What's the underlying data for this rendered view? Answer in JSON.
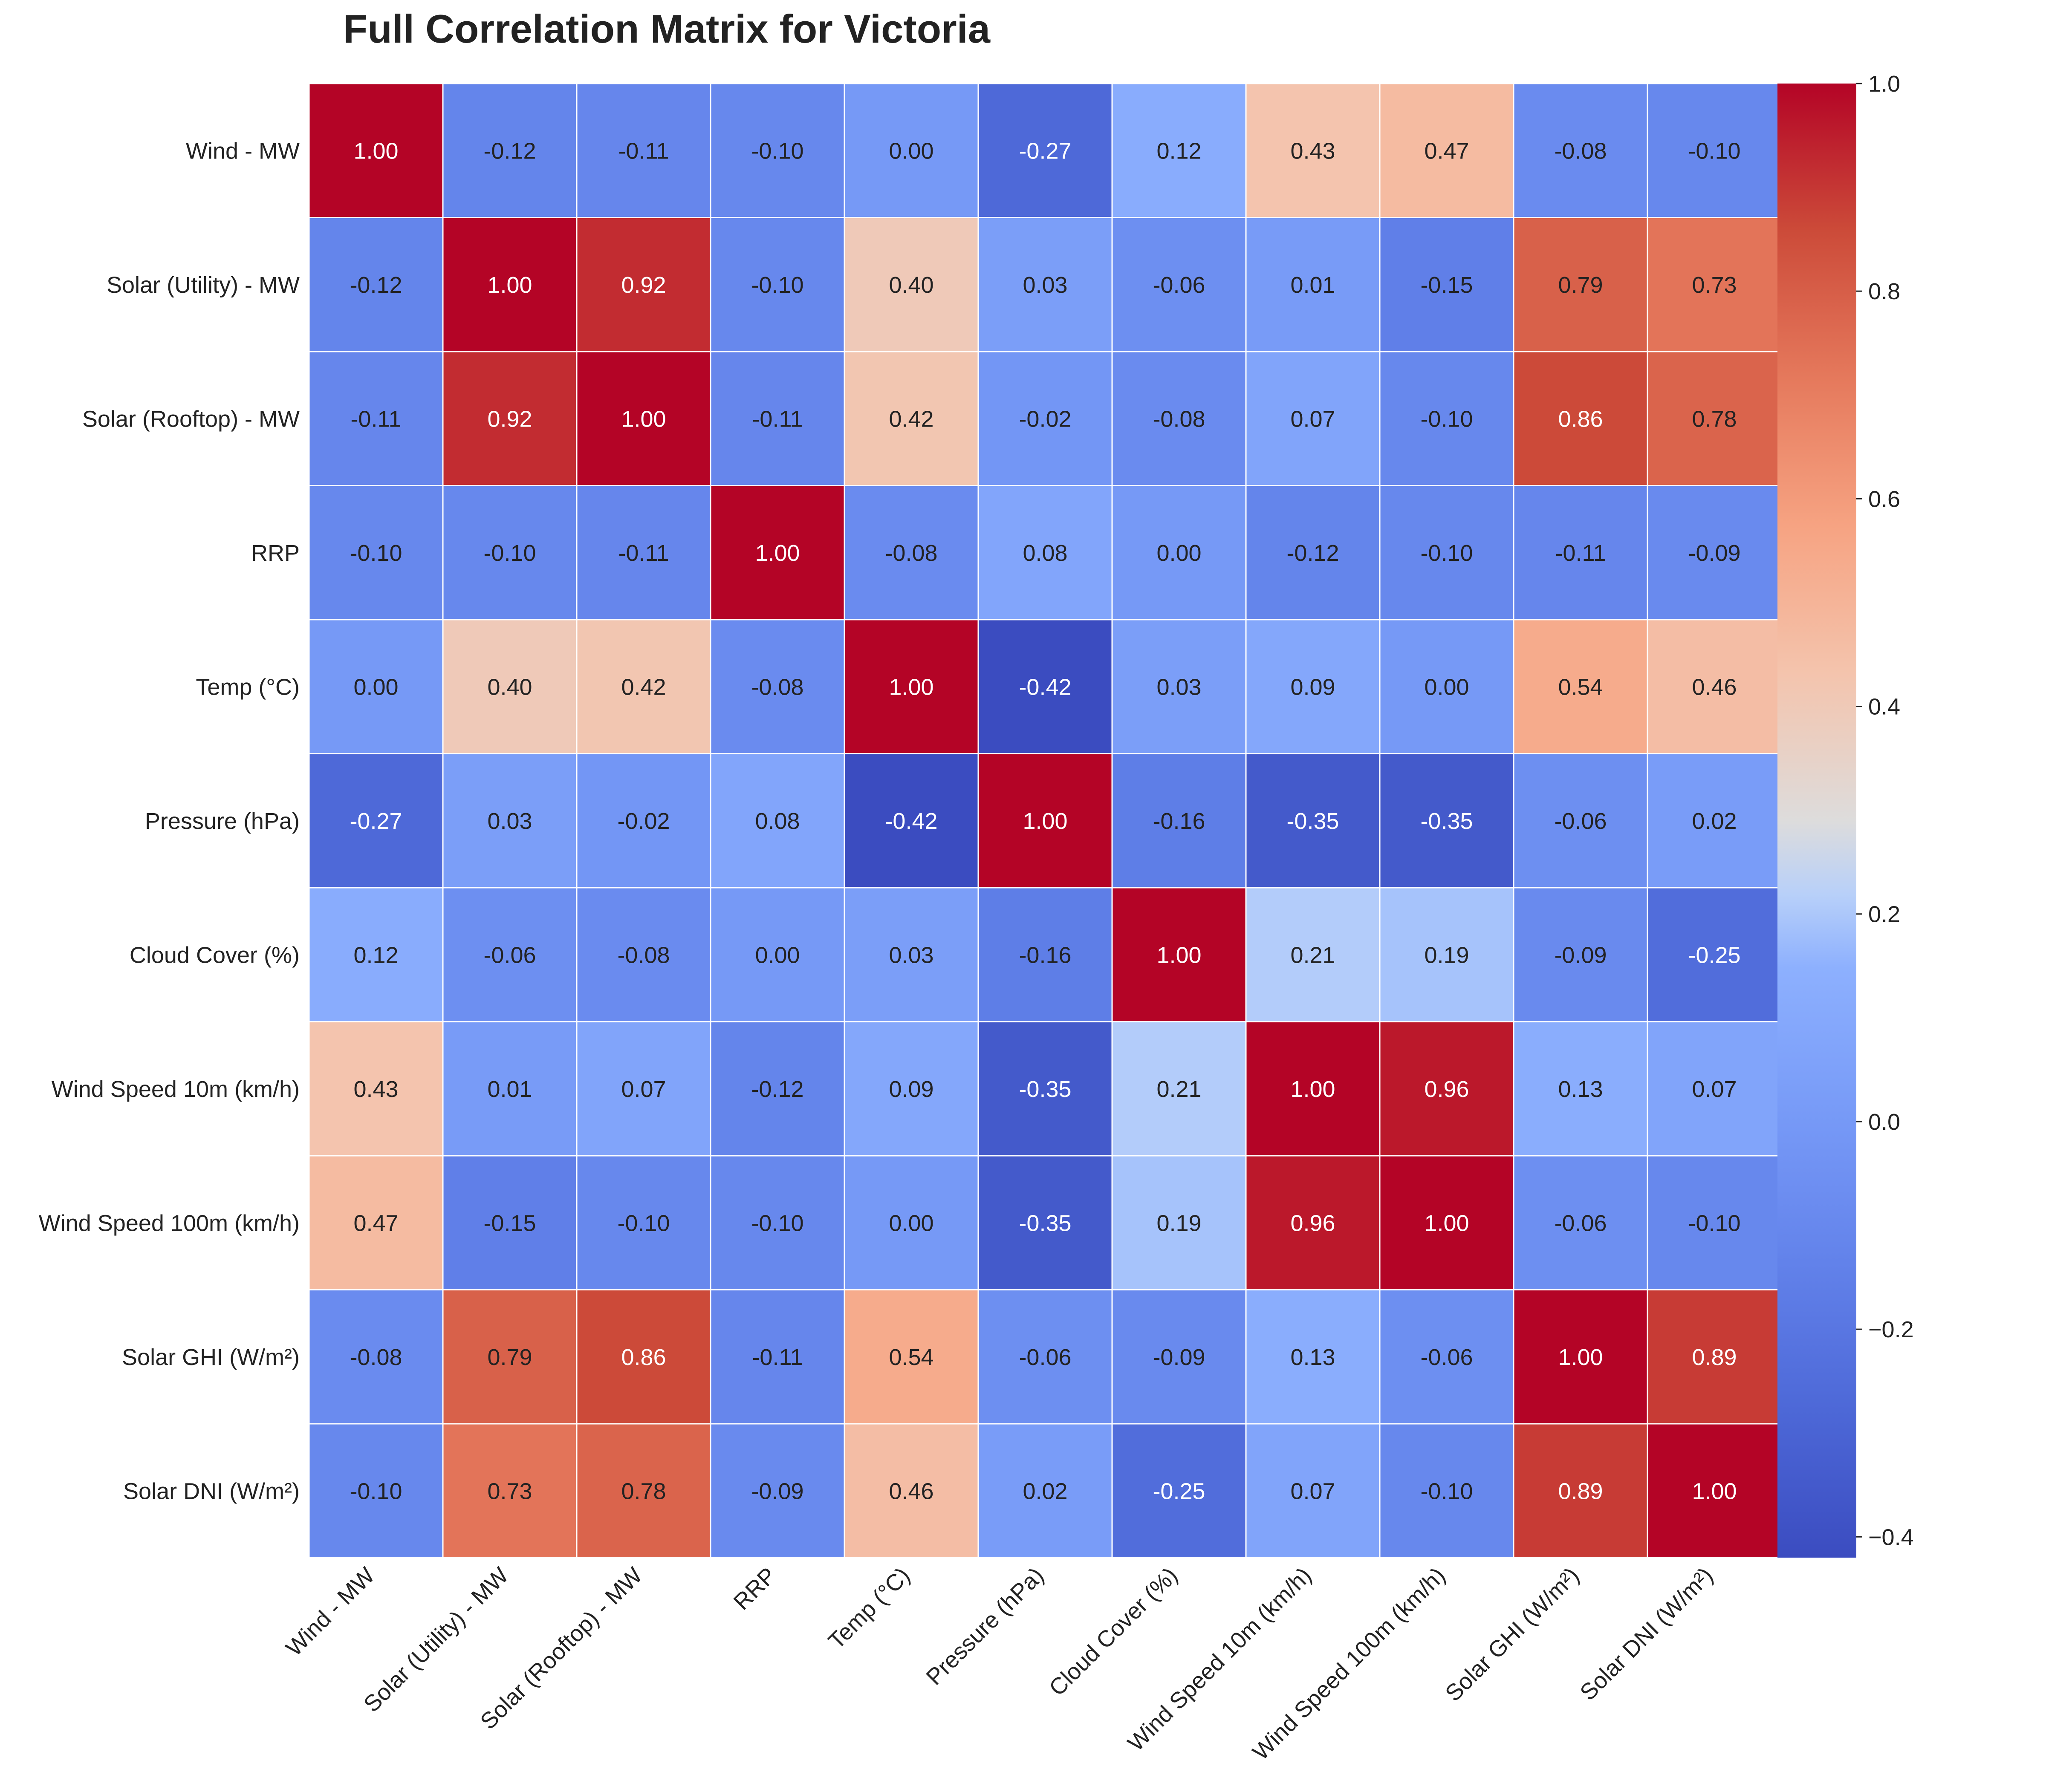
{
  "chart_data": {
    "type": "heatmap",
    "title": "Full Correlation Matrix for Victoria",
    "labels": [
      "Wind -  MW",
      "Solar (Utility) -  MW",
      "Solar (Rooftop) -  MW",
      "RRP",
      "Temp (°C)",
      "Pressure (hPa)",
      "Cloud Cover (%)",
      "Wind Speed 10m (km/h)",
      "Wind Speed 100m (km/h)",
      "Solar GHI (W/m²)",
      "Solar DNI (W/m²)"
    ],
    "values": [
      [
        1.0,
        -0.12,
        -0.11,
        -0.1,
        0.0,
        -0.27,
        0.12,
        0.43,
        0.47,
        -0.08,
        -0.1
      ],
      [
        -0.12,
        1.0,
        0.92,
        -0.1,
        0.4,
        0.03,
        -0.06,
        0.01,
        -0.15,
        0.79,
        0.73
      ],
      [
        -0.11,
        0.92,
        1.0,
        -0.11,
        0.42,
        -0.02,
        -0.08,
        0.07,
        -0.1,
        0.86,
        0.78
      ],
      [
        -0.1,
        -0.1,
        -0.11,
        1.0,
        -0.08,
        0.08,
        0.0,
        -0.12,
        -0.1,
        -0.11,
        -0.09
      ],
      [
        0.0,
        0.4,
        0.42,
        -0.08,
        1.0,
        -0.42,
        0.03,
        0.09,
        0.0,
        0.54,
        0.46
      ],
      [
        -0.27,
        0.03,
        -0.02,
        0.08,
        -0.42,
        1.0,
        -0.16,
        -0.35,
        -0.35,
        -0.06,
        0.02
      ],
      [
        0.12,
        -0.06,
        -0.08,
        0.0,
        0.03,
        -0.16,
        1.0,
        0.21,
        0.19,
        -0.09,
        -0.25
      ],
      [
        0.43,
        0.01,
        0.07,
        -0.12,
        0.09,
        -0.35,
        0.21,
        1.0,
        0.96,
        0.13,
        0.07
      ],
      [
        0.47,
        -0.15,
        -0.1,
        -0.1,
        0.0,
        -0.35,
        0.19,
        0.96,
        1.0,
        -0.06,
        -0.1
      ],
      [
        -0.08,
        0.79,
        0.86,
        -0.11,
        0.54,
        -0.06,
        -0.09,
        0.13,
        -0.06,
        1.0,
        0.89
      ],
      [
        -0.1,
        0.73,
        0.78,
        -0.09,
        0.46,
        0.02,
        -0.25,
        0.07,
        -0.1,
        0.89,
        1.0
      ]
    ],
    "value_format": "0.00",
    "colormap": "coolwarm",
    "colorbar": {
      "min": -0.42,
      "max": 1.0,
      "ticks": [
        "1.0",
        "0.8",
        "0.6",
        "0.4",
        "0.2",
        "0.0",
        "−0.2",
        "−0.4"
      ],
      "tick_values": [
        1.0,
        0.8,
        0.6,
        0.4,
        0.2,
        0.0,
        -0.2,
        -0.4
      ]
    },
    "colors": {
      "low": "#3b4cc0",
      "mid": "#dddcdc",
      "high": "#b40426",
      "cell_border": "#ffffff",
      "text_dark": "#222222",
      "text_light": "#ffffff"
    },
    "legend_position": "right"
  }
}
